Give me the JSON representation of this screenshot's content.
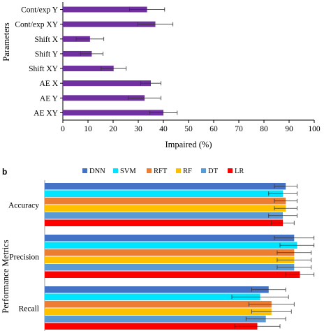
{
  "chart_data": [
    {
      "type": "bar",
      "orientation": "horizontal",
      "panel_label": "",
      "title": "",
      "xlabel": "Impaired (%)",
      "ylabel": "Parameters",
      "xlim": [
        0,
        100
      ],
      "xticks": [
        0,
        10,
        20,
        30,
        40,
        50,
        60,
        70,
        80,
        90,
        100
      ],
      "grid": false,
      "categories": [
        "Cont/exp Y",
        "Cont/exp XY",
        "Shift X",
        "Shift Y",
        "Shift XY",
        "AE X",
        "AE Y",
        "AE XY"
      ],
      "values": [
        33.5,
        36.8,
        10.8,
        11.5,
        20.2,
        35.0,
        32.5,
        40.0
      ],
      "errors": [
        7.0,
        7.0,
        5.5,
        4.5,
        5.0,
        4.0,
        6.5,
        5.5
      ],
      "color": "#7030a0"
    },
    {
      "type": "bar",
      "orientation": "horizontal",
      "panel_label": "b",
      "title": "",
      "xlabel": "",
      "ylabel": "Performance Metrics",
      "xlim": [
        0,
        100
      ],
      "grid": false,
      "legend_position": "top",
      "categories": [
        "Accuracy",
        "Precision",
        "Recall"
      ],
      "series": [
        {
          "name": "DNN",
          "color": "#4472c4",
          "values": [
            85,
            88,
            79
          ],
          "errors": [
            4,
            7,
            6
          ]
        },
        {
          "name": "SVM",
          "color": "#00e5ff",
          "values": [
            84,
            89,
            76
          ],
          "errors": [
            5,
            6,
            10
          ]
        },
        {
          "name": "RFT",
          "color": "#ed7d31",
          "values": [
            85,
            88,
            80
          ],
          "errors": [
            4,
            6,
            8
          ]
        },
        {
          "name": "RF",
          "color": "#ffc000",
          "values": [
            85,
            88,
            80
          ],
          "errors": [
            4,
            6,
            7
          ]
        },
        {
          "name": "DT",
          "color": "#5b9bd5",
          "values": [
            84,
            88,
            78
          ],
          "errors": [
            5,
            6,
            7
          ]
        },
        {
          "name": "LR",
          "color": "#ff0000",
          "values": [
            84,
            90,
            75
          ],
          "errors": [
            4,
            5,
            8
          ]
        }
      ]
    }
  ]
}
